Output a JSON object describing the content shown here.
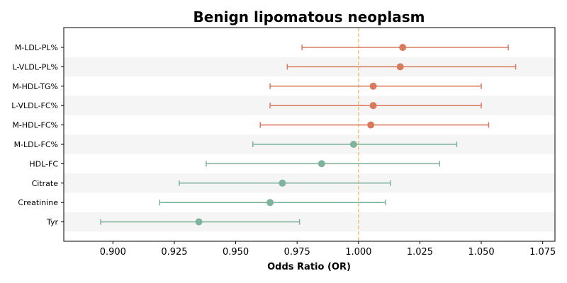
{
  "chart_data": {
    "type": "forest",
    "title": "Benign lipomatous neoplasm",
    "xlabel": "Odds Ratio (OR)",
    "ylabel": "",
    "xlim": [
      0.88,
      1.08
    ],
    "xticks": [
      "0.900",
      "0.925",
      "0.950",
      "0.975",
      "1.000",
      "1.025",
      "1.050",
      "1.075"
    ],
    "reference_line": 1.0,
    "reference_color": "#f5c27a",
    "positive_color": "#d97a5e",
    "negative_color": "#7fb39b",
    "band_color": "#f5f5f5",
    "categories": [
      "M-LDL-PL%",
      "L-VLDL-PL%",
      "M-HDL-TG%",
      "L-VLDL-FC%",
      "M-HDL-FC%",
      "M-LDL-FC%",
      "HDL-FC",
      "Citrate",
      "Creatinine",
      "Tyr"
    ],
    "or": [
      1.018,
      1.017,
      1.006,
      1.006,
      1.005,
      0.998,
      0.985,
      0.969,
      0.964,
      0.935
    ],
    "ci_low": [
      0.977,
      0.971,
      0.964,
      0.964,
      0.96,
      0.957,
      0.938,
      0.927,
      0.919,
      0.895
    ],
    "ci_high": [
      1.061,
      1.064,
      1.05,
      1.05,
      1.053,
      1.04,
      1.033,
      1.013,
      1.011,
      0.976
    ]
  }
}
